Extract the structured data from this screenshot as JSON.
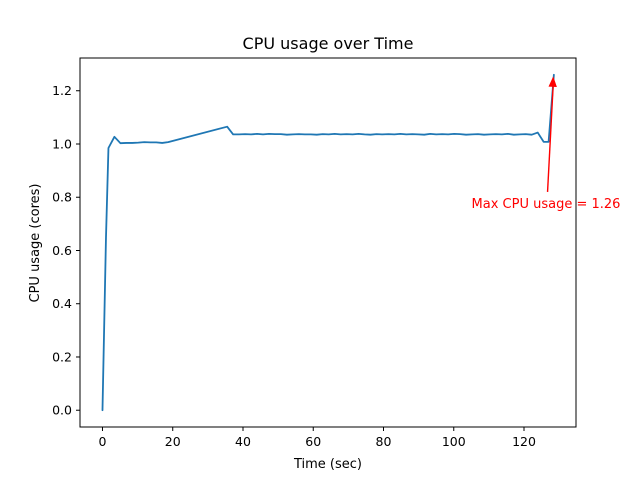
{
  "chart_data": {
    "type": "line",
    "title": "CPU usage over Time",
    "xlabel": "Time (sec)",
    "ylabel": "CPU usage (cores)",
    "xlim": [
      -6.4,
      134.8
    ],
    "ylim": [
      -0.063,
      1.323
    ],
    "xticks": [
      0,
      20,
      40,
      60,
      80,
      100,
      120
    ],
    "yticks": [
      0.0,
      0.2,
      0.4,
      0.6,
      0.8,
      1.0,
      1.2
    ],
    "xtick_labels": [
      "0",
      "20",
      "40",
      "60",
      "80",
      "100",
      "120"
    ],
    "ytick_labels": [
      "0.0",
      "0.2",
      "0.4",
      "0.6",
      "0.8",
      "1.0",
      "1.2"
    ],
    "grid": false,
    "line_color": "#1f77b4",
    "series": [
      {
        "x": [
          0,
          1,
          1.7,
          3.4,
          5.1,
          6.8,
          8.5,
          10.2,
          11.9,
          13.6,
          15.3,
          17,
          18.7,
          35.5,
          37.2,
          38.9,
          40.6,
          42.3,
          44,
          45.7,
          47.4,
          49.1,
          50.8,
          52.5,
          54.2,
          55.9,
          57.6,
          59.3,
          61,
          62.7,
          64.4,
          66.1,
          67.8,
          69.5,
          71.2,
          72.9,
          74.6,
          76.3,
          78,
          79.7,
          81.4,
          83.1,
          84.8,
          86.5,
          88.2,
          89.9,
          91.6,
          93.3,
          95,
          96.7,
          98.4,
          100.1,
          101.8,
          103.5,
          105.2,
          106.9,
          108.6,
          110.3,
          112,
          113.7,
          115.4,
          117.1,
          118.8,
          120.5,
          122.2,
          123.9,
          125.6,
          127,
          128.5
        ],
        "y": [
          0.0,
          0.65,
          0.985,
          1.027,
          1.003,
          1.004,
          1.004,
          1.005,
          1.007,
          1.006,
          1.006,
          1.004,
          1.007,
          1.065,
          1.036,
          1.036,
          1.037,
          1.036,
          1.038,
          1.036,
          1.038,
          1.037,
          1.037,
          1.035,
          1.036,
          1.037,
          1.036,
          1.036,
          1.035,
          1.037,
          1.036,
          1.038,
          1.036,
          1.037,
          1.036,
          1.038,
          1.036,
          1.035,
          1.037,
          1.036,
          1.037,
          1.036,
          1.038,
          1.036,
          1.037,
          1.036,
          1.035,
          1.038,
          1.036,
          1.037,
          1.036,
          1.038,
          1.037,
          1.035,
          1.036,
          1.037,
          1.035,
          1.036,
          1.037,
          1.036,
          1.038,
          1.035,
          1.036,
          1.037,
          1.035,
          1.043,
          1.008,
          1.008,
          1.26
        ]
      }
    ],
    "annotation": {
      "text": "Max CPU usage = 1.26",
      "color": "#ff0000",
      "point_x": 128.3,
      "point_y": 1.25,
      "text_x": 126.7,
      "text_y": 0.82
    }
  }
}
